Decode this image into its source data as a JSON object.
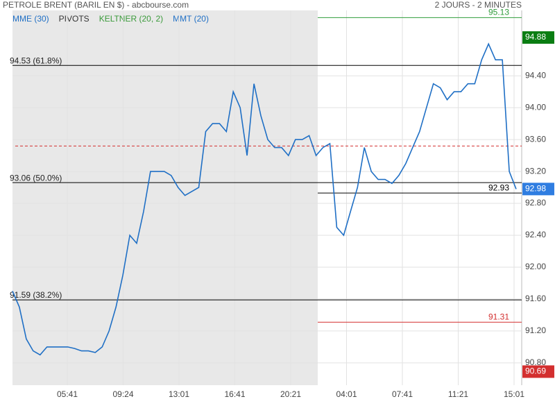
{
  "header": {
    "title": "PETROLE BRENT (BARIL EN $) - abcbourse.com",
    "period": "2 JOURS - 2 MINUTES"
  },
  "chart_data": {
    "type": "line",
    "indicators": [
      "MME (30)",
      "PIVOTS",
      "KELTNER (20, 2)",
      "MMT (20)"
    ],
    "indicator_colors": [
      "#1f6fc5",
      "#333333",
      "#3a9a3a",
      "#1f6fc5"
    ],
    "x_labels": [
      "05:41",
      "09:24",
      "13:01",
      "16:41",
      "20:21",
      "04:01",
      "07:41",
      "11:21",
      "15:01"
    ],
    "ylim": [
      90.52,
      95.22
    ],
    "yticks": [
      {
        "value": 90.8,
        "label": "90.80"
      },
      {
        "value": 91.2,
        "label": "91.20"
      },
      {
        "value": 91.6,
        "label": "91.60"
      },
      {
        "value": 92,
        "label": "92.00"
      },
      {
        "value": 92.4,
        "label": "92.40"
      },
      {
        "value": 92.8,
        "label": "92.80"
      },
      {
        "value": 93.2,
        "label": "93.20"
      },
      {
        "value": 93.6,
        "label": "93.60"
      },
      {
        "value": 94,
        "label": "94.00"
      },
      {
        "value": 94.4,
        "label": "94.40"
      }
    ],
    "grid": true,
    "series": [
      {
        "color": "#1f6fc5",
        "values": [
          91.7,
          91.5,
          91.1,
          90.95,
          90.9,
          91.0,
          91.0,
          91.0,
          91.0,
          90.98,
          90.95,
          90.95,
          90.93,
          91.0,
          91.2,
          91.5,
          91.9,
          92.4,
          92.3,
          92.7,
          93.2,
          93.2,
          93.2,
          93.15,
          93.0,
          92.9,
          92.95,
          93.0,
          93.7,
          93.8,
          93.8,
          93.7,
          94.2,
          94.0,
          93.4,
          94.3,
          93.9,
          93.6,
          93.5,
          93.5,
          93.4,
          93.6,
          93.6,
          93.65,
          93.4,
          93.5,
          93.55,
          92.5,
          92.4,
          92.7,
          93.0,
          93.5,
          93.2,
          93.1,
          93.1,
          93.05,
          93.15,
          93.3,
          93.5,
          93.7,
          94.0,
          94.3,
          94.25,
          94.1,
          94.2,
          94.2,
          94.3,
          94.3,
          94.6,
          94.8,
          94.6,
          94.6,
          93.2,
          92.98
        ]
      }
    ],
    "pivots": [
      {
        "value": 94.53,
        "label": "94.53 (61.8%)"
      },
      {
        "value": 93.06,
        "label": "93.06 (50.0%)"
      },
      {
        "value": 91.59,
        "label": "91.59 (38.2%)"
      }
    ],
    "pivot_dashed": {
      "value": 93.52,
      "color": "#d32f2f"
    },
    "levels": [
      {
        "value": 95.13,
        "color": "#2e9b3a"
      },
      {
        "value": 92.93,
        "color": "#000000"
      },
      {
        "value": 91.31,
        "color": "#d32f2f"
      }
    ],
    "badges": [
      {
        "value": 94.88,
        "color": "#0a7d12"
      },
      {
        "value": 92.98,
        "color": "#2f7de1"
      },
      {
        "value": 90.69,
        "color": "#d32f2f"
      }
    ]
  }
}
